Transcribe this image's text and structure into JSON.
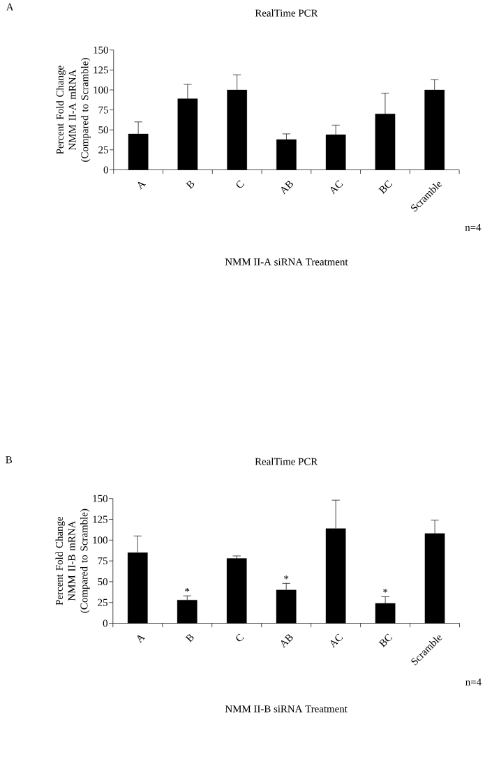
{
  "chart_data": [
    {
      "type": "bar",
      "title": "RealTime PCR",
      "xlabel": "NMM II-A  siRNA Treatment",
      "ylabel": "Percent Fold Change NMM II-A mRNA (Compared to Scramble)",
      "categories": [
        "A",
        "B",
        "C",
        "AB",
        "AC",
        "BC",
        "Scramble"
      ],
      "values": [
        45,
        89,
        100,
        38,
        44,
        70,
        100
      ],
      "errors": [
        [
          45,
          60
        ],
        [
          89,
          107
        ],
        [
          100,
          119
        ],
        [
          38,
          45
        ],
        [
          44,
          56
        ],
        [
          70,
          96
        ],
        [
          100,
          113
        ]
      ],
      "color": "#000000",
      "ylim": [
        0,
        150
      ],
      "yticks": [
        0,
        25,
        50,
        75,
        100,
        125,
        150
      ],
      "annotations": [
        "A",
        "n=4"
      ]
    },
    {
      "type": "bar",
      "title": "RealTime PCR",
      "xlabel": "NMM II-B siRNA Treatment",
      "ylabel": "Percent Fold Change NMM II-B mRNA (Compared to Scramble)",
      "categories": [
        "A",
        "B",
        "C",
        "AB",
        "AC",
        "BC",
        "Scramble"
      ],
      "values": [
        85,
        28,
        78,
        40,
        114,
        24,
        108
      ],
      "errors": [
        [
          85,
          105
        ],
        [
          28,
          33
        ],
        [
          78,
          81
        ],
        [
          40,
          48
        ],
        [
          114,
          148
        ],
        [
          24,
          32
        ],
        [
          108,
          124
        ]
      ],
      "color": "#000000",
      "ylim": [
        0,
        150
      ],
      "yticks": [
        0,
        25,
        50,
        75,
        100,
        125,
        150
      ],
      "annotations": [
        "B",
        "n=4",
        {
          "text": "*",
          "x": "B",
          "y": 33
        },
        {
          "text": "*",
          "x": "AB",
          "y": 48
        },
        {
          "text": "*",
          "x": "BC",
          "y": 32
        }
      ]
    }
  ]
}
